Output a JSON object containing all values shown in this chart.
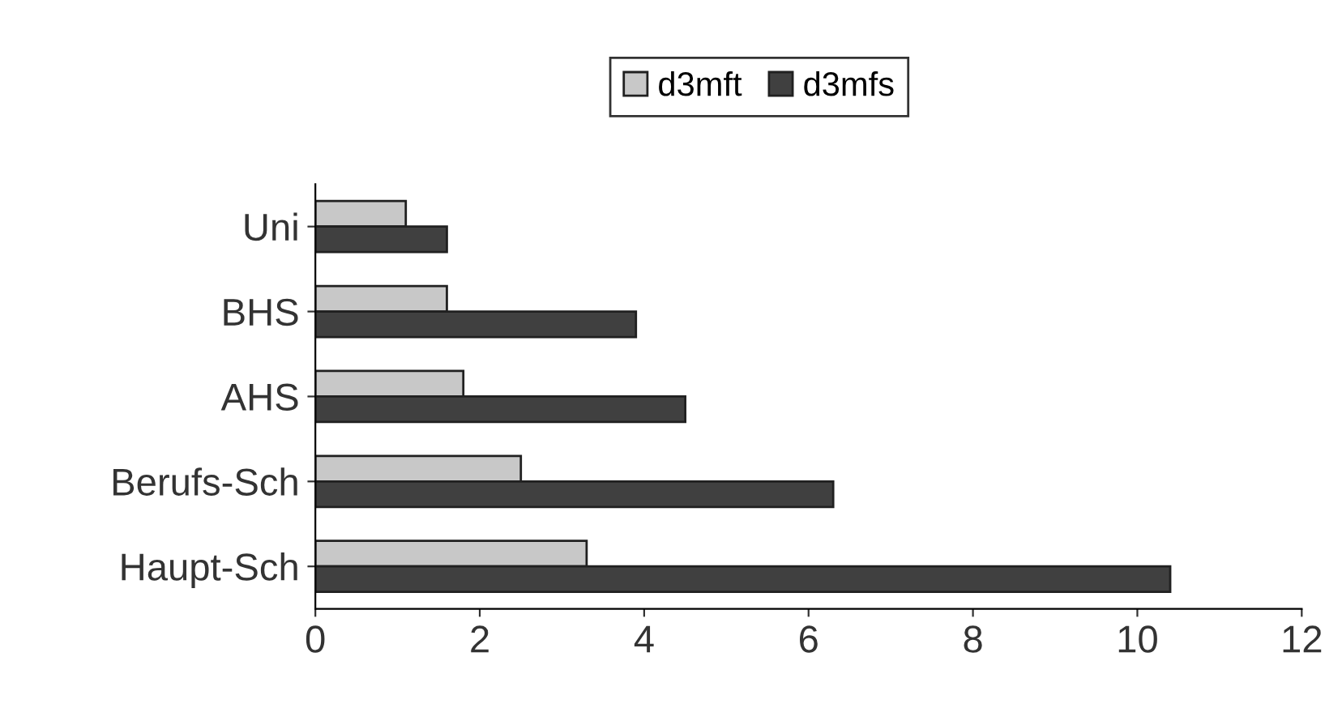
{
  "chart_data": {
    "type": "bar",
    "orientation": "horizontal",
    "categories": [
      "Uni",
      "BHS",
      "AHS",
      "Berufs-Sch",
      "Haupt-Sch"
    ],
    "series": [
      {
        "name": "d3mft",
        "color": "#c8c8c8",
        "values": [
          1.1,
          1.6,
          1.8,
          2.5,
          3.3
        ]
      },
      {
        "name": "d3mfs",
        "color": "#404040",
        "values": [
          1.6,
          3.9,
          4.5,
          6.3,
          10.4
        ]
      }
    ],
    "xlim": [
      0,
      12
    ],
    "xticks": [
      0,
      2,
      4,
      6,
      8,
      10,
      12
    ],
    "grid": false,
    "legend": "top"
  }
}
